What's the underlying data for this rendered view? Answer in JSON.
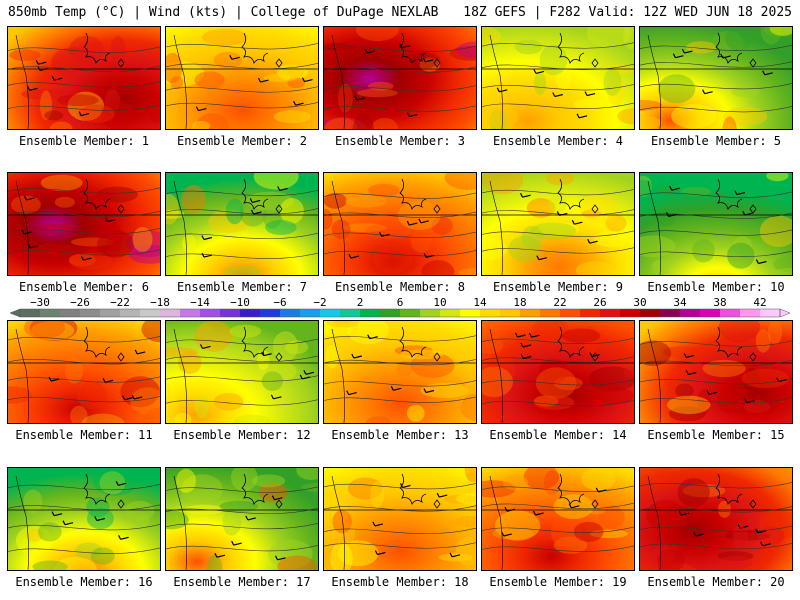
{
  "header": {
    "left": "850mb Temp (°C) | Wind (kts) | College of DuPage NEXLAB",
    "right": "18Z GEFS | F282 Valid: 12Z WED JUN 18 2025"
  },
  "members": [
    {
      "label": "Ensemble Member: 1",
      "temp_pattern": "hot-east"
    },
    {
      "label": "Ensemble Member: 2",
      "temp_pattern": "warm"
    },
    {
      "label": "Ensemble Member: 3",
      "temp_pattern": "very-hot-west"
    },
    {
      "label": "Ensemble Member: 4",
      "temp_pattern": "mild-low-north"
    },
    {
      "label": "Ensemble Member: 5",
      "temp_pattern": "cool-east"
    },
    {
      "label": "Ensemble Member: 6",
      "temp_pattern": "very-hot-west"
    },
    {
      "label": "Ensemble Member: 7",
      "temp_pattern": "cool-north"
    },
    {
      "label": "Ensemble Member: 8",
      "temp_pattern": "hot-south"
    },
    {
      "label": "Ensemble Member: 9",
      "temp_pattern": "mild"
    },
    {
      "label": "Ensemble Member: 10",
      "temp_pattern": "cool-low-north"
    },
    {
      "label": "Ensemble Member: 11",
      "temp_pattern": "hot-south"
    },
    {
      "label": "Ensemble Member: 12",
      "temp_pattern": "mild-low-east"
    },
    {
      "label": "Ensemble Member: 13",
      "temp_pattern": "warm"
    },
    {
      "label": "Ensemble Member: 14",
      "temp_pattern": "hot"
    },
    {
      "label": "Ensemble Member: 15",
      "temp_pattern": "hot-east"
    },
    {
      "label": "Ensemble Member: 16",
      "temp_pattern": "cool-north"
    },
    {
      "label": "Ensemble Member: 17",
      "temp_pattern": "cool-east"
    },
    {
      "label": "Ensemble Member: 18",
      "temp_pattern": "warm"
    },
    {
      "label": "Ensemble Member: 19",
      "temp_pattern": "hot-south"
    },
    {
      "label": "Ensemble Member: 20",
      "temp_pattern": "hot-west"
    }
  ],
  "colorbar": {
    "tick_labels": [
      "-30",
      "-26",
      "-22",
      "-18",
      "-14",
      "-10",
      "-6",
      "-2",
      "2",
      "6",
      "10",
      "14",
      "18",
      "22",
      "26",
      "30",
      "34",
      "38",
      "42"
    ],
    "colors": [
      "#5a6e61",
      "#6e8272",
      "#808080",
      "#8c8c8c",
      "#a0a0a0",
      "#b4b4b4",
      "#c8c8c8",
      "#dcb4dc",
      "#c878e6",
      "#a050e6",
      "#7832dc",
      "#3c1ec8",
      "#1e3cdc",
      "#1e78e6",
      "#14a0f0",
      "#14c8e6",
      "#14c896",
      "#00b450",
      "#32a028",
      "#64b41e",
      "#a0d21e",
      "#d2e614",
      "#ffff00",
      "#ffdc00",
      "#ffc800",
      "#ffa000",
      "#ff7800",
      "#ff5000",
      "#f02800",
      "#dc1414",
      "#c80000",
      "#a00000",
      "#8c0050",
      "#b40096",
      "#dc00b4",
      "#f050dc",
      "#ff96f0",
      "#ffc8ff"
    ]
  }
}
